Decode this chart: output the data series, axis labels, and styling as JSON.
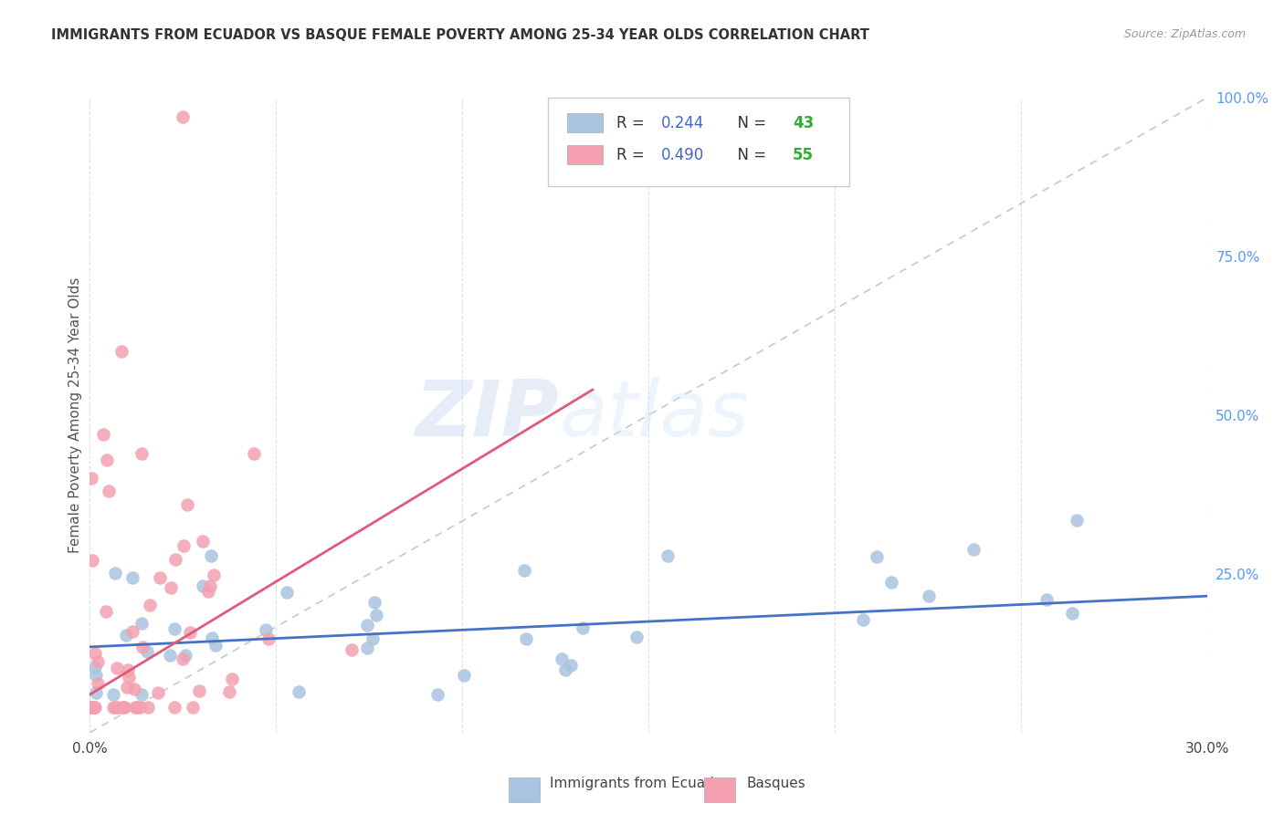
{
  "title": "IMMIGRANTS FROM ECUADOR VS BASQUE FEMALE POVERTY AMONG 25-34 YEAR OLDS CORRELATION CHART",
  "source": "Source: ZipAtlas.com",
  "ylabel": "Female Poverty Among 25-34 Year Olds",
  "xlabel_blue": "Immigrants from Ecuador",
  "xlabel_pink": "Basques",
  "watermark": "ZIPatlas",
  "R_blue": 0.244,
  "N_blue": 43,
  "R_pink": 0.49,
  "N_pink": 55,
  "xlim": [
    0.0,
    0.3
  ],
  "ylim": [
    0.0,
    1.0
  ],
  "color_blue": "#a8c4e0",
  "color_pink": "#f4a0b0",
  "line_blue": "#4472c4",
  "line_pink": "#e05a7a",
  "legend_R_color": "#4466cc",
  "legend_N_color": "#33aa33",
  "diag_line_color": "#c8c8c8",
  "grid_color": "#e0e0e0",
  "blue_trend_x0": 0.0,
  "blue_trend_y0": 0.135,
  "blue_trend_x1": 0.3,
  "blue_trend_y1": 0.215,
  "pink_trend_x0": 0.0,
  "pink_trend_y0": 0.06,
  "pink_trend_x1": 0.135,
  "pink_trend_y1": 0.54
}
